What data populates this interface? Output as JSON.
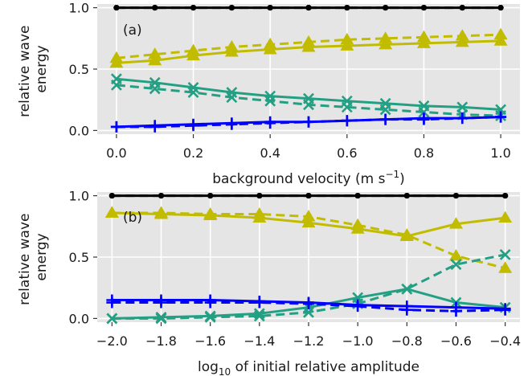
{
  "chart_data": [
    {
      "type": "line",
      "panel_label": "(a)",
      "xlabel_main": "background velocity (m s",
      "xlabel_sup": "−1",
      "xlabel_end": ")",
      "ylabel": [
        "relative wave",
        "energy"
      ],
      "xlim": [
        -0.05,
        1.05
      ],
      "ylim": [
        -0.03,
        1.03
      ],
      "xticks": [
        0.0,
        0.2,
        0.4,
        0.6,
        0.8,
        1.0
      ],
      "xtick_labels": [
        "0.0",
        "0.2",
        "0.4",
        "0.6",
        "0.8",
        "1.0"
      ],
      "yticks": [
        0.0,
        0.5,
        1.0
      ],
      "ytick_labels": [
        "0.0",
        "0.5",
        "1.0"
      ],
      "grid": true,
      "background": "#e5e5e5",
      "x": [
        0.0,
        0.1,
        0.2,
        0.3,
        0.4,
        0.5,
        0.6,
        0.7,
        0.8,
        0.9,
        1.0
      ],
      "series": [
        {
          "color": "#000000",
          "marker": "circle",
          "dash": false,
          "values": [
            1.0,
            1.0,
            1.0,
            1.0,
            1.0,
            1.0,
            1.0,
            1.0,
            1.0,
            1.0,
            1.0
          ]
        },
        {
          "color": "#000000",
          "marker": "circle",
          "dash": true,
          "values": [
            1.0,
            1.0,
            1.0,
            1.0,
            1.0,
            1.0,
            1.0,
            1.0,
            1.0,
            1.0,
            1.0
          ]
        },
        {
          "color": "#c2bc00",
          "marker": "triangle",
          "dash": false,
          "values": [
            0.55,
            0.57,
            0.61,
            0.64,
            0.66,
            0.68,
            0.69,
            0.7,
            0.71,
            0.72,
            0.73
          ]
        },
        {
          "color": "#c2bc00",
          "marker": "triangle",
          "dash": true,
          "values": [
            0.59,
            0.62,
            0.65,
            0.68,
            0.7,
            0.72,
            0.74,
            0.75,
            0.76,
            0.77,
            0.78
          ]
        },
        {
          "color": "#23a083",
          "marker": "x",
          "dash": false,
          "values": [
            0.42,
            0.39,
            0.35,
            0.31,
            0.28,
            0.26,
            0.24,
            0.22,
            0.2,
            0.19,
            0.17
          ]
        },
        {
          "color": "#23a083",
          "marker": "x",
          "dash": true,
          "values": [
            0.37,
            0.34,
            0.31,
            0.27,
            0.24,
            0.21,
            0.19,
            0.17,
            0.15,
            0.13,
            0.12
          ]
        },
        {
          "color": "#0000ff",
          "marker": "plus",
          "dash": false,
          "values": [
            0.03,
            0.04,
            0.05,
            0.06,
            0.07,
            0.07,
            0.08,
            0.09,
            0.1,
            0.1,
            0.11
          ]
        },
        {
          "color": "#0000ff",
          "marker": "plus",
          "dash": true,
          "values": [
            0.03,
            0.03,
            0.04,
            0.05,
            0.06,
            0.07,
            0.08,
            0.09,
            0.09,
            0.1,
            0.11
          ]
        }
      ]
    },
    {
      "type": "line",
      "panel_label": "(b)",
      "xlabel_pre": "log",
      "xlabel_sub": "10",
      "xlabel_post": " of initial relative amplitude",
      "ylabel": [
        "relative wave",
        "energy"
      ],
      "xlim": [
        -2.06,
        -0.34
      ],
      "ylim": [
        -0.03,
        1.03
      ],
      "xticks": [
        -2.0,
        -1.8,
        -1.6,
        -1.4,
        -1.2,
        -1.0,
        -0.8,
        -0.6,
        -0.4
      ],
      "xtick_labels": [
        "−2.0",
        "−1.8",
        "−1.6",
        "−1.4",
        "−1.2",
        "−1.0",
        "−0.8",
        "−0.6",
        "−0.4"
      ],
      "yticks": [
        0.0,
        0.5,
        1.0
      ],
      "ytick_labels": [
        "0.0",
        "0.5",
        "1.0"
      ],
      "grid": true,
      "background": "#e5e5e5",
      "x": [
        -2.0,
        -1.8,
        -1.6,
        -1.4,
        -1.2,
        -1.0,
        -0.8,
        -0.6,
        -0.4
      ],
      "series": [
        {
          "color": "#000000",
          "marker": "circle",
          "dash": false,
          "values": [
            1.0,
            1.0,
            1.0,
            1.0,
            1.0,
            1.0,
            1.0,
            1.0,
            1.0
          ]
        },
        {
          "color": "#000000",
          "marker": "circle",
          "dash": true,
          "values": [
            1.0,
            1.0,
            1.0,
            1.0,
            1.0,
            1.0,
            1.0,
            1.0,
            1.0
          ]
        },
        {
          "color": "#c2bc00",
          "marker": "triangle",
          "dash": false,
          "values": [
            0.86,
            0.85,
            0.84,
            0.82,
            0.78,
            0.73,
            0.67,
            0.77,
            0.82
          ]
        },
        {
          "color": "#c2bc00",
          "marker": "triangle",
          "dash": true,
          "values": [
            0.86,
            0.86,
            0.85,
            0.85,
            0.83,
            0.76,
            0.68,
            0.51,
            0.41
          ]
        },
        {
          "color": "#23a083",
          "marker": "x",
          "dash": false,
          "values": [
            0.0,
            0.01,
            0.02,
            0.04,
            0.09,
            0.17,
            0.24,
            0.13,
            0.09
          ]
        },
        {
          "color": "#23a083",
          "marker": "x",
          "dash": true,
          "values": [
            0.0,
            0.0,
            0.01,
            0.02,
            0.05,
            0.12,
            0.24,
            0.44,
            0.52
          ]
        },
        {
          "color": "#0000ff",
          "marker": "plus",
          "dash": false,
          "values": [
            0.15,
            0.15,
            0.15,
            0.14,
            0.13,
            0.11,
            0.1,
            0.09,
            0.08
          ]
        },
        {
          "color": "#0000ff",
          "marker": "plus",
          "dash": true,
          "values": [
            0.13,
            0.13,
            0.13,
            0.13,
            0.12,
            0.1,
            0.07,
            0.06,
            0.07
          ]
        }
      ]
    }
  ]
}
